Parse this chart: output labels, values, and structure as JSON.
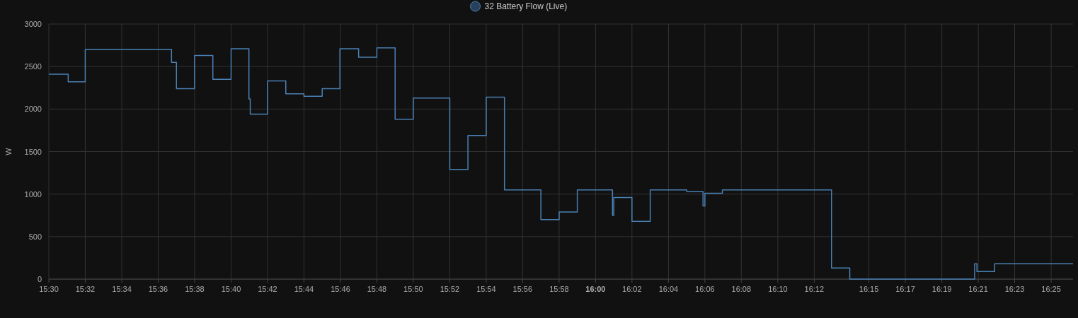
{
  "chart_data": {
    "type": "step",
    "ylabel": "W",
    "legend": "top",
    "grid": true,
    "xlim": [
      15.5,
      16.4367
    ],
    "ylim": [
      0,
      3000
    ],
    "yticks": [
      0,
      500,
      1000,
      1500,
      2000,
      2500,
      3000
    ],
    "xticks": [
      {
        "value": 15.5,
        "label": "15:30"
      },
      {
        "value": 15.5333,
        "label": "15:32"
      },
      {
        "value": 15.5667,
        "label": "15:34"
      },
      {
        "value": 15.6,
        "label": "15:36"
      },
      {
        "value": 15.6333,
        "label": "15:38"
      },
      {
        "value": 15.6667,
        "label": "15:40"
      },
      {
        "value": 15.7,
        "label": "15:42"
      },
      {
        "value": 15.7333,
        "label": "15:44"
      },
      {
        "value": 15.7667,
        "label": "15:46"
      },
      {
        "value": 15.8,
        "label": "15:48"
      },
      {
        "value": 15.8333,
        "label": "15:50"
      },
      {
        "value": 15.8667,
        "label": "15:52"
      },
      {
        "value": 15.9,
        "label": "15:54"
      },
      {
        "value": 15.9333,
        "label": "15:56"
      },
      {
        "value": 15.9667,
        "label": "15:58"
      },
      {
        "value": 16,
        "label": "16:00"
      },
      {
        "value": 16.0333,
        "label": "16:02"
      },
      {
        "value": 16.0667,
        "label": "16:04"
      },
      {
        "value": 16.1,
        "label": "16:06"
      },
      {
        "value": 16.1333,
        "label": "16:08"
      },
      {
        "value": 16.1667,
        "label": "16:10"
      },
      {
        "value": 16.2,
        "label": "16:12"
      },
      {
        "value": 16.25,
        "label": "16:15"
      },
      {
        "value": 16.2833,
        "label": "16:17"
      },
      {
        "value": 16.3167,
        "label": "16:19"
      },
      {
        "value": 16.35,
        "label": "16:21"
      },
      {
        "value": 16.3833,
        "label": "16:23"
      },
      {
        "value": 16.4167,
        "label": "16:25"
      }
    ],
    "series": [
      {
        "name": "32 Battery Flow (Live)",
        "color": "#4a80b4",
        "x": [
          15.5,
          15.5177,
          15.5333,
          15.6122,
          15.6167,
          15.6333,
          15.65,
          15.6667,
          15.683,
          15.6842,
          15.7,
          15.7167,
          15.7333,
          15.75,
          15.7662,
          15.7833,
          15.8,
          15.8167,
          15.8333,
          15.8667,
          15.8833,
          15.9,
          15.9167,
          15.95,
          15.9667,
          15.9833,
          16.0155,
          16.0167,
          16.0333,
          16.05,
          16.0833,
          16.0983,
          16.1,
          16.116,
          16.2158,
          16.2325,
          16.3467,
          16.3488,
          16.365,
          16.4367
        ],
        "values": [
          2410,
          2320,
          2700,
          2550,
          2240,
          2630,
          2350,
          2710,
          2120,
          1940,
          2330,
          2180,
          2150,
          2240,
          2710,
          2610,
          2720,
          1880,
          2130,
          1290,
          1690,
          2140,
          1050,
          700,
          790,
          1050,
          750,
          960,
          680,
          1050,
          1030,
          860,
          1010,
          1050,
          130,
          0,
          180,
          90,
          180,
          180
        ]
      }
    ]
  }
}
